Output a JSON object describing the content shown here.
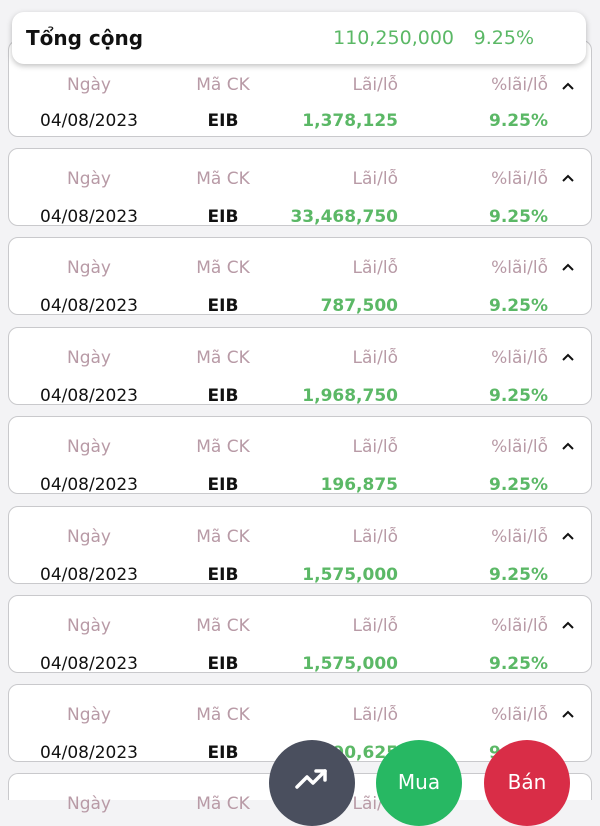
{
  "summary": {
    "label": "Tổng cộng",
    "total_profit": "110,250,000",
    "total_percent": "9.25%"
  },
  "headers": {
    "date": "Ngày",
    "code": "Mã CK",
    "profit": "Lãi/lỗ",
    "percent": "%lãi/lỗ"
  },
  "rows": [
    {
      "date": "04/08/2023",
      "code": "EIB",
      "profit": "1,378,125",
      "percent": "9.25%"
    },
    {
      "date": "04/08/2023",
      "code": "EIB",
      "profit": "33,468,750",
      "percent": "9.25%"
    },
    {
      "date": "04/08/2023",
      "code": "EIB",
      "profit": "787,500",
      "percent": "9.25%"
    },
    {
      "date": "04/08/2023",
      "code": "EIB",
      "profit": "1,968,750",
      "percent": "9.25%"
    },
    {
      "date": "04/08/2023",
      "code": "EIB",
      "profit": "196,875",
      "percent": "9.25%"
    },
    {
      "date": "04/08/2023",
      "code": "EIB",
      "profit": "1,575,000",
      "percent": "9.25%"
    },
    {
      "date": "04/08/2023",
      "code": "EIB",
      "profit": "1,575,000",
      "percent": "9.25%"
    },
    {
      "date": "04/08/2023",
      "code": "EIB",
      "profit": "590,625",
      "percent": "9.25%"
    }
  ],
  "buttons": {
    "chart_icon": "trending-up-icon",
    "buy": "Mua",
    "sell": "Bán"
  },
  "colors": {
    "profit_green": "#5bb866",
    "header_mauve": "#b89aa6",
    "buy_green": "#27b863",
    "sell_red": "#d92d47",
    "chart_button": "#4a4f5e"
  }
}
